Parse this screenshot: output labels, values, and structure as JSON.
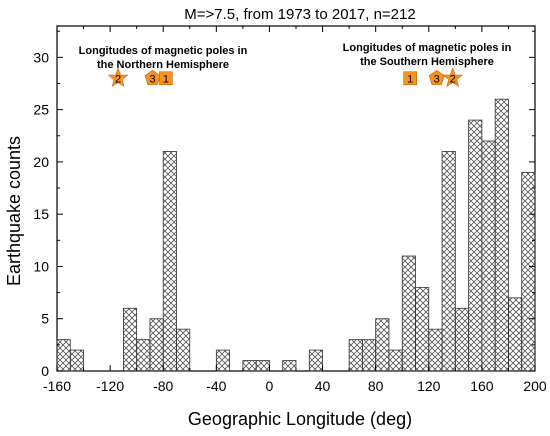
{
  "chart_data": {
    "type": "bar",
    "title": "M=>7.5,  from 1973 to 2017,  n=212",
    "xlabel": "Geographic Longitude (deg)",
    "ylabel": "Earthquake counts",
    "xlim": [
      -160,
      200
    ],
    "ylim": [
      0,
      33
    ],
    "bin_width": 10,
    "x_ticks": [
      -160,
      -120,
      -80,
      -40,
      0,
      40,
      80,
      120,
      160,
      200
    ],
    "y_ticks": [
      0,
      5,
      10,
      15,
      20,
      25,
      30
    ],
    "bins": [
      {
        "x0": -150,
        "value": 3
      },
      {
        "x0": -140,
        "value": 2
      },
      {
        "x0": -100,
        "value": 6
      },
      {
        "x0": -90,
        "value": 3
      },
      {
        "x0": -80,
        "value": 5
      },
      {
        "x0": -70,
        "value": 21
      },
      {
        "x0": -60,
        "value": 4
      },
      {
        "x0": -30,
        "value": 2
      },
      {
        "x0": -10,
        "value": 1
      },
      {
        "x0": 0,
        "value": 1
      },
      {
        "x0": 20,
        "value": 1
      },
      {
        "x0": 40,
        "value": 2
      },
      {
        "x0": 70,
        "value": 3
      },
      {
        "x0": 80,
        "value": 3
      },
      {
        "x0": 90,
        "value": 5
      },
      {
        "x0": 100,
        "value": 2
      },
      {
        "x0": 110,
        "value": 11
      },
      {
        "x0": 120,
        "value": 8
      },
      {
        "x0": 130,
        "value": 4
      },
      {
        "x0": 140,
        "value": 21
      },
      {
        "x0": 150,
        "value": 6
      },
      {
        "x0": 160,
        "value": 24
      },
      {
        "x0": 170,
        "value": 22
      },
      {
        "x0": 180,
        "value": 26
      },
      {
        "x0": 190,
        "value": 7
      },
      {
        "x0": 200,
        "value": 19
      }
    ],
    "annotations": {
      "north": {
        "line1": "Longitudes of magnetic poles in",
        "line2": "the Northern Hemisphere"
      },
      "south": {
        "line1": "Longitudes of magnetic poles in",
        "line2": "the Southern Hemisphere"
      }
    },
    "markers": [
      {
        "shape": "star",
        "label": "2",
        "x": -114,
        "y": 28
      },
      {
        "shape": "pentagon",
        "label": "3",
        "x": -88,
        "y": 28
      },
      {
        "shape": "square",
        "label": "1",
        "x": -78,
        "y": 28
      },
      {
        "shape": "square",
        "label": "1",
        "x": 106,
        "y": 28
      },
      {
        "shape": "pentagon",
        "label": "3",
        "x": 126,
        "y": 28
      },
      {
        "shape": "star",
        "label": "2",
        "x": 138,
        "y": 28
      }
    ],
    "marker_color": "#f7941d",
    "bar_color": "#555555",
    "grid": false
  }
}
